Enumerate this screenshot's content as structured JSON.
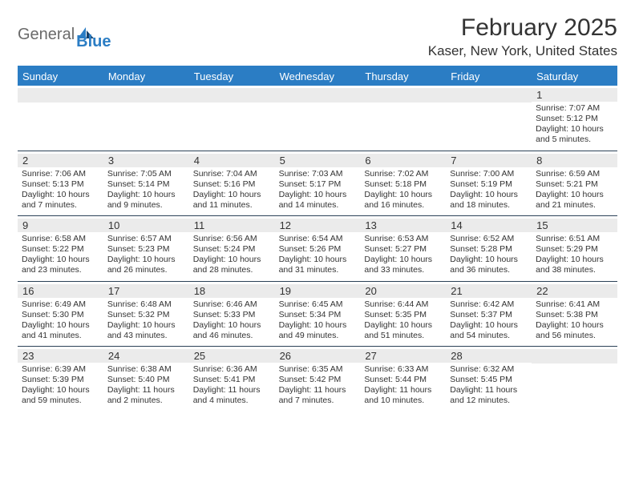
{
  "brand": {
    "general": "General",
    "blue": "Blue"
  },
  "colors": {
    "accent": "#2b7dc4",
    "header_text": "#ffffff",
    "daynum_bg": "#ebebeb",
    "grid_divider": "#2b4257",
    "text": "#333333"
  },
  "title": "February 2025",
  "location": "Kaser, New York, United States",
  "dow": [
    "Sunday",
    "Monday",
    "Tuesday",
    "Wednesday",
    "Thursday",
    "Friday",
    "Saturday"
  ],
  "weeks": [
    [
      {
        "n": "",
        "lines": []
      },
      {
        "n": "",
        "lines": []
      },
      {
        "n": "",
        "lines": []
      },
      {
        "n": "",
        "lines": []
      },
      {
        "n": "",
        "lines": []
      },
      {
        "n": "",
        "lines": []
      },
      {
        "n": "1",
        "lines": [
          "Sunrise: 7:07 AM",
          "Sunset: 5:12 PM",
          "Daylight: 10 hours and 5 minutes."
        ]
      }
    ],
    [
      {
        "n": "2",
        "lines": [
          "Sunrise: 7:06 AM",
          "Sunset: 5:13 PM",
          "Daylight: 10 hours and 7 minutes."
        ]
      },
      {
        "n": "3",
        "lines": [
          "Sunrise: 7:05 AM",
          "Sunset: 5:14 PM",
          "Daylight: 10 hours and 9 minutes."
        ]
      },
      {
        "n": "4",
        "lines": [
          "Sunrise: 7:04 AM",
          "Sunset: 5:16 PM",
          "Daylight: 10 hours and 11 minutes."
        ]
      },
      {
        "n": "5",
        "lines": [
          "Sunrise: 7:03 AM",
          "Sunset: 5:17 PM",
          "Daylight: 10 hours and 14 minutes."
        ]
      },
      {
        "n": "6",
        "lines": [
          "Sunrise: 7:02 AM",
          "Sunset: 5:18 PM",
          "Daylight: 10 hours and 16 minutes."
        ]
      },
      {
        "n": "7",
        "lines": [
          "Sunrise: 7:00 AM",
          "Sunset: 5:19 PM",
          "Daylight: 10 hours and 18 minutes."
        ]
      },
      {
        "n": "8",
        "lines": [
          "Sunrise: 6:59 AM",
          "Sunset: 5:21 PM",
          "Daylight: 10 hours and 21 minutes."
        ]
      }
    ],
    [
      {
        "n": "9",
        "lines": [
          "Sunrise: 6:58 AM",
          "Sunset: 5:22 PM",
          "Daylight: 10 hours and 23 minutes."
        ]
      },
      {
        "n": "10",
        "lines": [
          "Sunrise: 6:57 AM",
          "Sunset: 5:23 PM",
          "Daylight: 10 hours and 26 minutes."
        ]
      },
      {
        "n": "11",
        "lines": [
          "Sunrise: 6:56 AM",
          "Sunset: 5:24 PM",
          "Daylight: 10 hours and 28 minutes."
        ]
      },
      {
        "n": "12",
        "lines": [
          "Sunrise: 6:54 AM",
          "Sunset: 5:26 PM",
          "Daylight: 10 hours and 31 minutes."
        ]
      },
      {
        "n": "13",
        "lines": [
          "Sunrise: 6:53 AM",
          "Sunset: 5:27 PM",
          "Daylight: 10 hours and 33 minutes."
        ]
      },
      {
        "n": "14",
        "lines": [
          "Sunrise: 6:52 AM",
          "Sunset: 5:28 PM",
          "Daylight: 10 hours and 36 minutes."
        ]
      },
      {
        "n": "15",
        "lines": [
          "Sunrise: 6:51 AM",
          "Sunset: 5:29 PM",
          "Daylight: 10 hours and 38 minutes."
        ]
      }
    ],
    [
      {
        "n": "16",
        "lines": [
          "Sunrise: 6:49 AM",
          "Sunset: 5:30 PM",
          "Daylight: 10 hours and 41 minutes."
        ]
      },
      {
        "n": "17",
        "lines": [
          "Sunrise: 6:48 AM",
          "Sunset: 5:32 PM",
          "Daylight: 10 hours and 43 minutes."
        ]
      },
      {
        "n": "18",
        "lines": [
          "Sunrise: 6:46 AM",
          "Sunset: 5:33 PM",
          "Daylight: 10 hours and 46 minutes."
        ]
      },
      {
        "n": "19",
        "lines": [
          "Sunrise: 6:45 AM",
          "Sunset: 5:34 PM",
          "Daylight: 10 hours and 49 minutes."
        ]
      },
      {
        "n": "20",
        "lines": [
          "Sunrise: 6:44 AM",
          "Sunset: 5:35 PM",
          "Daylight: 10 hours and 51 minutes."
        ]
      },
      {
        "n": "21",
        "lines": [
          "Sunrise: 6:42 AM",
          "Sunset: 5:37 PM",
          "Daylight: 10 hours and 54 minutes."
        ]
      },
      {
        "n": "22",
        "lines": [
          "Sunrise: 6:41 AM",
          "Sunset: 5:38 PM",
          "Daylight: 10 hours and 56 minutes."
        ]
      }
    ],
    [
      {
        "n": "23",
        "lines": [
          "Sunrise: 6:39 AM",
          "Sunset: 5:39 PM",
          "Daylight: 10 hours and 59 minutes."
        ]
      },
      {
        "n": "24",
        "lines": [
          "Sunrise: 6:38 AM",
          "Sunset: 5:40 PM",
          "Daylight: 11 hours and 2 minutes."
        ]
      },
      {
        "n": "25",
        "lines": [
          "Sunrise: 6:36 AM",
          "Sunset: 5:41 PM",
          "Daylight: 11 hours and 4 minutes."
        ]
      },
      {
        "n": "26",
        "lines": [
          "Sunrise: 6:35 AM",
          "Sunset: 5:42 PM",
          "Daylight: 11 hours and 7 minutes."
        ]
      },
      {
        "n": "27",
        "lines": [
          "Sunrise: 6:33 AM",
          "Sunset: 5:44 PM",
          "Daylight: 11 hours and 10 minutes."
        ]
      },
      {
        "n": "28",
        "lines": [
          "Sunrise: 6:32 AM",
          "Sunset: 5:45 PM",
          "Daylight: 11 hours and 12 minutes."
        ]
      },
      {
        "n": "",
        "lines": []
      }
    ]
  ]
}
